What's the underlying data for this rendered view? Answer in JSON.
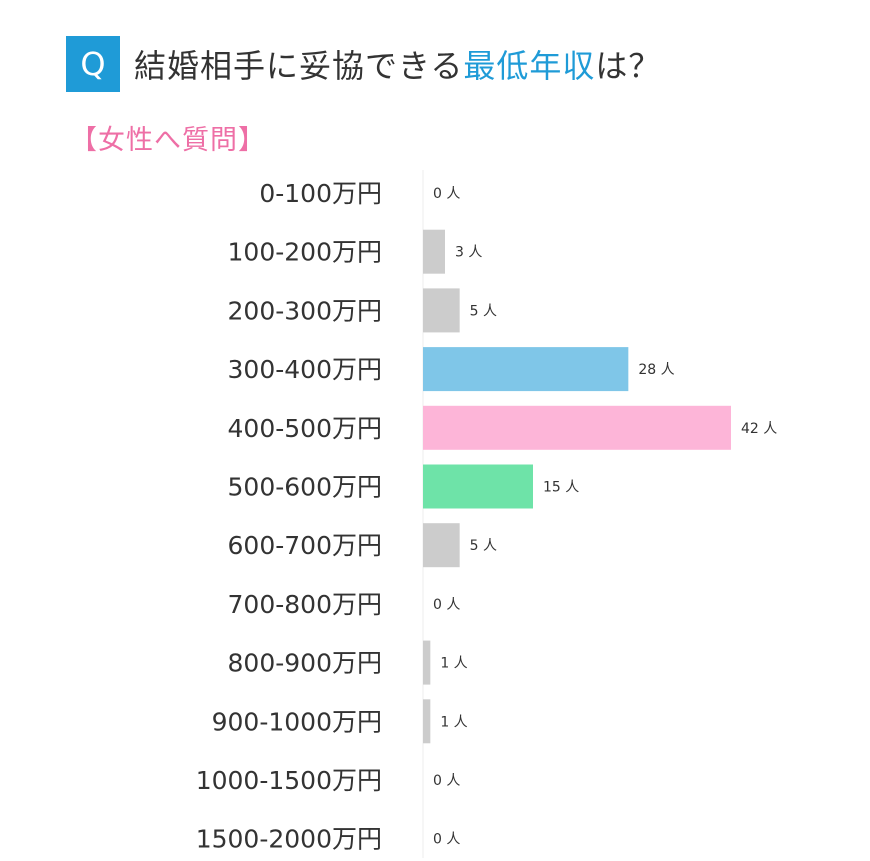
{
  "header": {
    "badge": "Q",
    "title_part1": "結婚相手に妥協できる",
    "title_highlight": "最低年収",
    "title_part2": "は？"
  },
  "subtitle": "【女性へ質問】",
  "colors": {
    "accent": "#1f9bd7",
    "pink_text": "#ee6fa6",
    "bar_default": "#cccccc",
    "bar_blue": "#7fc6e8",
    "bar_pink": "#fdb5d8",
    "bar_green": "#6ee3a8"
  },
  "chart_data": {
    "type": "bar",
    "orientation": "horizontal",
    "title": "結婚相手に妥協できる最低年収は？",
    "subtitle": "【女性へ質問】",
    "unit": "人",
    "categories": [
      "0-100万円",
      "100-200万円",
      "200-300万円",
      "300-400万円",
      "400-500万円",
      "500-600万円",
      "600-700万円",
      "700-800万円",
      "800-900万円",
      "900-1000万円",
      "1000-1500万円",
      "1500-2000万円"
    ],
    "values": [
      0,
      3,
      5,
      28,
      42,
      15,
      5,
      0,
      1,
      1,
      0,
      0
    ],
    "bar_colors": [
      "#cccccc",
      "#cccccc",
      "#cccccc",
      "#7fc6e8",
      "#fdb5d8",
      "#6ee3a8",
      "#cccccc",
      "#cccccc",
      "#cccccc",
      "#cccccc",
      "#cccccc",
      "#cccccc"
    ],
    "value_labels": [
      "0 人",
      "3 人",
      "5 人",
      "28 人",
      "42 人",
      "15 人",
      "5 人",
      "0 人",
      "1 人",
      "1 人",
      "0 人",
      "0 人"
    ],
    "xlim": [
      0,
      42
    ],
    "grid": false,
    "legend": "none"
  }
}
